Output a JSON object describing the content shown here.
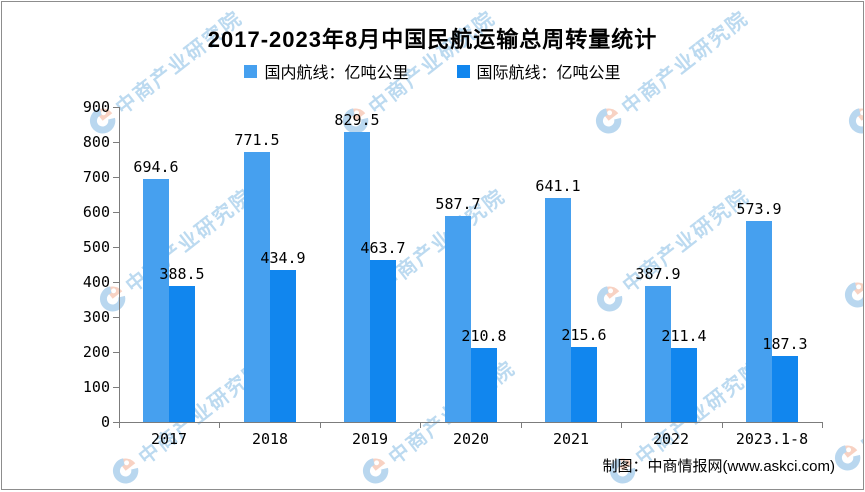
{
  "title": "2017-2023年8月中国民航运输总周转量统计",
  "legend": [
    {
      "label": "国内航线：亿吨公里",
      "color": "#46a0ef"
    },
    {
      "label": "国际航线：亿吨公里",
      "color": "#1186ee"
    }
  ],
  "credit": "制图：中商情报网(www.askci.com)",
  "watermark": {
    "text": "中商产业研究院",
    "logo_icon": "askci-logo",
    "logo_colors": {
      "blue": "#9fc9ea",
      "salmon": "#f6c2ac"
    }
  },
  "chart_data": {
    "type": "bar",
    "title": "2017-2023年8月中国民航运输总周转量统计",
    "categories": [
      "2017",
      "2018",
      "2019",
      "2020",
      "2021",
      "2022",
      "2023.1-8"
    ],
    "series": [
      {
        "name": "国内航线：亿吨公里",
        "color": "#46a0ef",
        "values": [
          694.6,
          771.5,
          829.5,
          587.7,
          641.1,
          387.9,
          573.9
        ]
      },
      {
        "name": "国际航线：亿吨公里",
        "color": "#1186ee",
        "values": [
          388.5,
          434.9,
          463.7,
          210.8,
          215.6,
          211.4,
          187.3
        ]
      }
    ],
    "xlabel": "",
    "ylabel": "",
    "ylim": [
      0,
      900
    ],
    "yticks": [
      0,
      100,
      200,
      300,
      400,
      500,
      600,
      700,
      800,
      900
    ],
    "grid": false,
    "legend_position": "top",
    "value_labels": true
  }
}
